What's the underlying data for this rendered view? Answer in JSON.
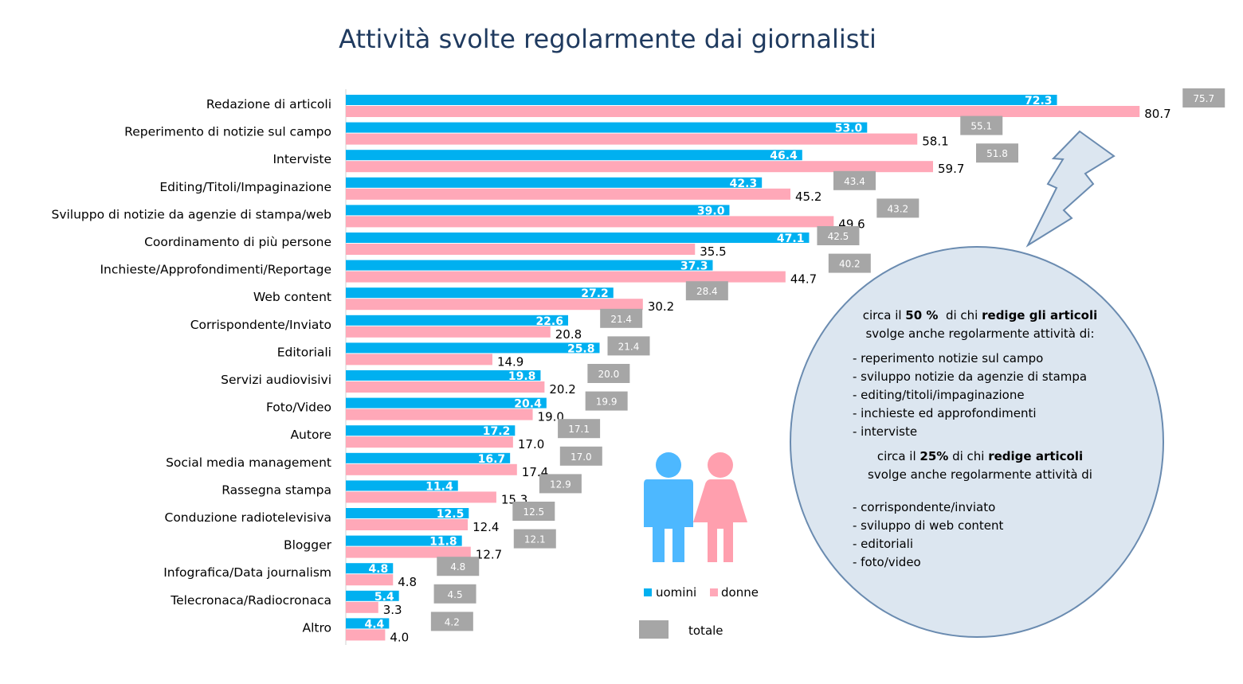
{
  "chart_data": {
    "type": "bar",
    "title": "Attività svolte regolarmente dai giornalisti",
    "categories": [
      "Redazione di articoli",
      "Reperimento di notizie sul campo",
      "Interviste",
      "Editing/Titoli/Impaginazione",
      "Sviluppo di notizie da agenzie di stampa/web",
      "Coordinamento di più persone",
      "Inchieste/Approfondimenti/Reportage",
      "Web content",
      "Corrispondente/Inviato",
      "Editoriali",
      "Servizi audiovisivi",
      "Foto/Video",
      "Autore",
      "Social media management",
      "Rassegna stampa",
      "Conduzione radiotelevisiva",
      "Blogger",
      "Infografica/Data journalism",
      "Telecronaca/Radiocronaca",
      "Altro"
    ],
    "series": [
      {
        "name": "uomini",
        "color": "#00b0f0",
        "values": [
          72.3,
          53.0,
          46.4,
          42.3,
          39.0,
          47.1,
          37.3,
          27.2,
          22.6,
          25.8,
          19.8,
          20.4,
          17.2,
          16.7,
          11.4,
          12.5,
          11.8,
          4.8,
          5.4,
          4.4
        ]
      },
      {
        "name": "donne",
        "color": "#ffa8b8",
        "values": [
          80.7,
          58.1,
          59.7,
          45.2,
          49.6,
          35.5,
          44.7,
          30.2,
          20.8,
          14.9,
          20.2,
          19.0,
          17.0,
          17.4,
          15.3,
          12.4,
          12.7,
          4.8,
          3.3,
          4.0
        ]
      },
      {
        "name": "totale",
        "color": "#a6a6a6",
        "values": [
          75.7,
          55.1,
          51.8,
          43.4,
          43.2,
          42.5,
          40.2,
          28.4,
          21.4,
          21.4,
          20.0,
          19.9,
          17.1,
          17.0,
          12.9,
          12.5,
          12.1,
          4.8,
          4.5,
          4.2
        ]
      }
    ],
    "orientation": "horizontal",
    "xlim": [
      0,
      85
    ],
    "grid": false,
    "legend": [
      "uomini",
      "donne",
      "totale"
    ],
    "legend_position": "bottom-center"
  },
  "callout": {
    "p1_pre": "circa il ",
    "p1_bold1": "50 %",
    "p1_mid": "  di chi ",
    "p1_bold2": "redige gli articoli",
    "p1_line2": "svolge anche regolarmente attività di:",
    "list1": [
      "- reperimento notizie sul campo",
      "- sviluppo notizie da agenzie di stampa",
      "- editing/titoli/impaginazione",
      "- inchieste ed approfondimenti",
      "- interviste"
    ],
    "p2_pre": "circa il ",
    "p2_bold1": "25%",
    "p2_mid": " di chi ",
    "p2_bold2": "redige articoli",
    "p2_line2": "svolge anche regolarmente attività di",
    "list2": [
      "- corrispondente/inviato",
      "- sviluppo di web content",
      "- editoriali",
      "- foto/video"
    ]
  },
  "colors": {
    "title": "#1f3a5f",
    "men": "#00b0f0",
    "women": "#ffa8b8",
    "total": "#a6a6a6",
    "figure_men": "#4db8ff",
    "figure_women": "#ff9fae",
    "callout_fill": "#dce6f0",
    "callout_stroke": "#6a8bb0"
  },
  "icons": [
    "man-figure-icon",
    "woman-figure-icon",
    "lightning-bolt-icon"
  ]
}
